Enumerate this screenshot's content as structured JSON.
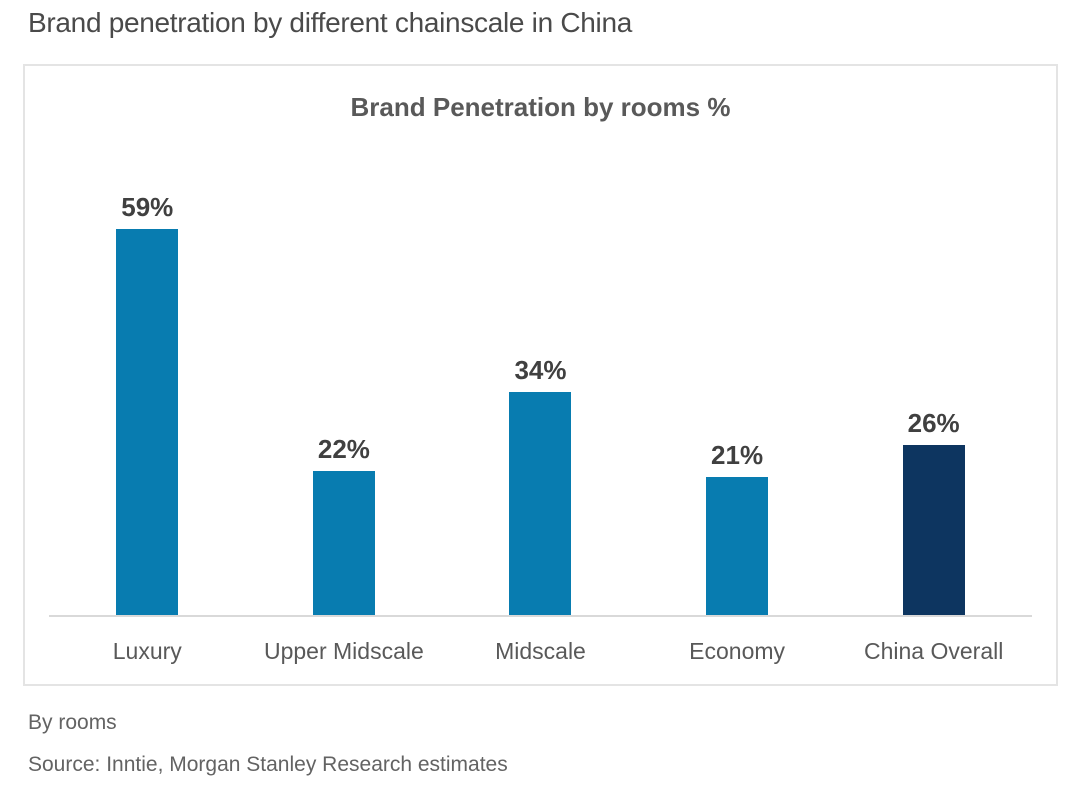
{
  "page": {
    "title": "Brand penetration by different chainscale in China"
  },
  "chart_data": {
    "type": "bar",
    "title": "Brand Penetration by rooms %",
    "categories": [
      "Luxury",
      "Upper Midscale",
      "Midscale",
      "Economy",
      "China Overall"
    ],
    "values": [
      59,
      22,
      34,
      21,
      26
    ],
    "value_labels": [
      "59%",
      "22%",
      "34%",
      "21%",
      "26%"
    ],
    "bar_colors": [
      "#087cb0",
      "#087cb0",
      "#087cb0",
      "#087cb0",
      "#0d3560"
    ],
    "xlabel": "",
    "ylabel": "",
    "ylim": [
      0,
      60
    ],
    "grid": false,
    "legend": false,
    "data_labels_position": "above-bars",
    "highlighted_category": "China Overall"
  },
  "footer": {
    "note": "By rooms",
    "source": "Source: Inntie, Morgan Stanley Research estimates"
  },
  "colors": {
    "bar_primary": "#087cb0",
    "bar_highlight": "#0d3560",
    "axis_line": "#d9d9d9",
    "card_border": "#e4e4e4",
    "title_text": "#4a4a4a",
    "chart_title_text": "#595959",
    "value_label_text": "#404040",
    "axis_label_text": "#595959",
    "footer_text": "#636363"
  }
}
